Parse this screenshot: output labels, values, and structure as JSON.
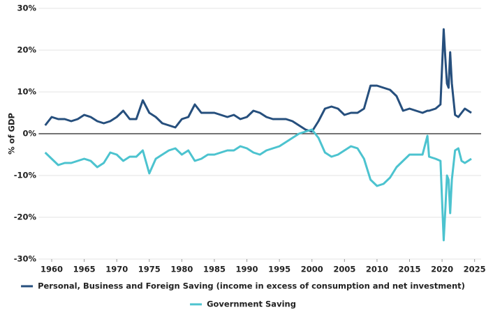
{
  "chart_data": {
    "type": "line",
    "y_label": "% of GDP",
    "x": [
      1959,
      1960,
      1961,
      1962,
      1963,
      1964,
      1965,
      1966,
      1967,
      1968,
      1969,
      1970,
      1971,
      1972,
      1973,
      1974,
      1975,
      1976,
      1977,
      1978,
      1979,
      1980,
      1981,
      1982,
      1983,
      1984,
      1985,
      1986,
      1987,
      1988,
      1989,
      1990,
      1991,
      1992,
      1993,
      1994,
      1995,
      1996,
      1997,
      1998,
      1999,
      2000,
      2001,
      2002,
      2003,
      2004,
      2005,
      2006,
      2007,
      2008,
      2009,
      2010,
      2011,
      2012,
      2013,
      2014,
      2015,
      2016,
      2017,
      2017.75,
      2018,
      2019,
      2019.75,
      2020.25,
      2020.5,
      2020.75,
      2021,
      2021.25,
      2021.5,
      2022,
      2022.5,
      2023,
      2023.5,
      2024,
      2024.5
    ],
    "series": [
      {
        "name": "Personal, Business and Foreign Saving (income in excess of consumption and net investment)",
        "color": "#264f7d",
        "values": [
          2,
          4,
          3.5,
          3.5,
          3,
          3.5,
          4.5,
          4,
          3,
          2.5,
          3,
          4,
          5.5,
          3.5,
          3.5,
          8,
          5,
          4,
          2.5,
          2,
          1.5,
          3.5,
          4,
          7,
          5,
          5,
          5,
          4.5,
          4,
          4.5,
          3.5,
          4,
          5.5,
          5,
          4,
          3.5,
          3.5,
          3.5,
          3,
          2,
          1,
          0.5,
          3,
          6,
          6.5,
          6,
          4.5,
          5,
          5,
          6,
          11.5,
          11.5,
          11,
          10.5,
          9,
          5.5,
          6,
          5.5,
          5,
          5.5,
          5.5,
          6,
          7,
          25,
          18,
          12,
          11,
          19.5,
          12,
          4.5,
          4,
          5,
          6,
          5.5,
          5
        ]
      },
      {
        "name": "Government Saving",
        "color": "#4cc3cf",
        "values": [
          -4.5,
          -6,
          -7.5,
          -7,
          -7,
          -6.5,
          -6,
          -6.5,
          -8,
          -7,
          -4.5,
          -5,
          -6.5,
          -5.5,
          -5.5,
          -4,
          -9.5,
          -6,
          -5,
          -4,
          -3.5,
          -5,
          -4,
          -6.5,
          -6,
          -5,
          -5,
          -4.5,
          -4,
          -4,
          -3,
          -3.5,
          -4.5,
          -5,
          -4,
          -3.5,
          -3,
          -2,
          -1,
          0,
          0.5,
          1,
          -1,
          -4.5,
          -5.5,
          -5,
          -4,
          -3,
          -3.5,
          -6,
          -11,
          -12.5,
          -12,
          -10.5,
          -8,
          -6.5,
          -5,
          -5,
          -5,
          -0.5,
          -5.5,
          -6,
          -6.5,
          -25.5,
          -18,
          -10,
          -11,
          -19,
          -11,
          -4,
          -3.5,
          -6.5,
          -7,
          -6.5,
          -6
        ]
      }
    ],
    "xlim": [
      1958,
      2026
    ],
    "xticks": [
      1960,
      1965,
      1970,
      1975,
      1980,
      1985,
      1990,
      1995,
      2000,
      2005,
      2010,
      2015,
      2020,
      2025
    ],
    "ylim": [
      -30,
      30
    ],
    "yticks": [
      {
        "value": -30,
        "label": "-30%"
      },
      {
        "value": -20,
        "label": "-20%"
      },
      {
        "value": -10,
        "label": "-10%"
      },
      {
        "value": 0,
        "label": "0%"
      },
      {
        "value": 10,
        "label": "10%"
      },
      {
        "value": 20,
        "label": "20%"
      },
      {
        "value": 30,
        "label": "30%"
      }
    ],
    "grid": true,
    "legend": "bottom"
  }
}
